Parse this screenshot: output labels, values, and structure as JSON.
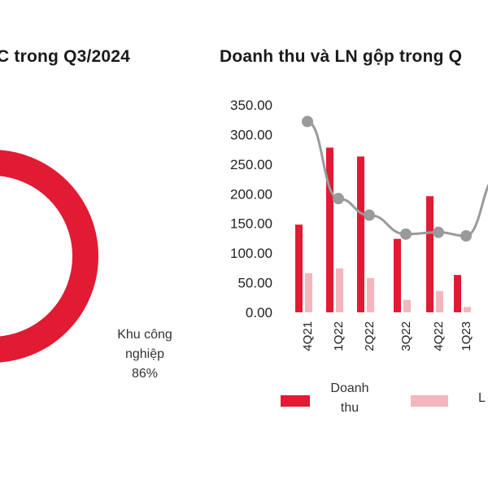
{
  "left_chart": {
    "title": "C trong Q3/2024",
    "segment_label_line1": "Khu công",
    "segment_label_line2": "nghiệp",
    "segment_value": "86%"
  },
  "chart_data": [
    {
      "type": "pie",
      "title": "C trong Q3/2024",
      "slices": [
        {
          "name": "Khu công nghiệp",
          "value": 86
        }
      ],
      "colors": {
        "main": "#e11b33"
      }
    },
    {
      "type": "bar",
      "title": "Doanh thu và LN gộp trong Q",
      "categories": [
        "4Q21",
        "1Q22",
        "2Q22",
        "3Q22",
        "4Q22",
        "1Q23"
      ],
      "series": [
        {
          "name": "Doanh thu",
          "values": [
            148,
            278,
            263,
            124,
            196,
            63
          ],
          "color": "#e11b33"
        },
        {
          "name": "L",
          "values": [
            66,
            74,
            58,
            21,
            36,
            9
          ],
          "color": "#f4b6bd"
        }
      ],
      "line_series": {
        "values": [
          322,
          192,
          164,
          132,
          135,
          129
        ],
        "color": "#9a9a9a"
      },
      "ylim": [
        0,
        350
      ],
      "yticks": [
        "350.00",
        "300.00",
        "250.00",
        "200.00",
        "150.00",
        "100.00",
        "50.00",
        "0.00"
      ],
      "legend": {
        "position": "bottom",
        "item1_line1": "Doanh",
        "item1_line2": "thu",
        "item2": "L"
      }
    }
  ]
}
